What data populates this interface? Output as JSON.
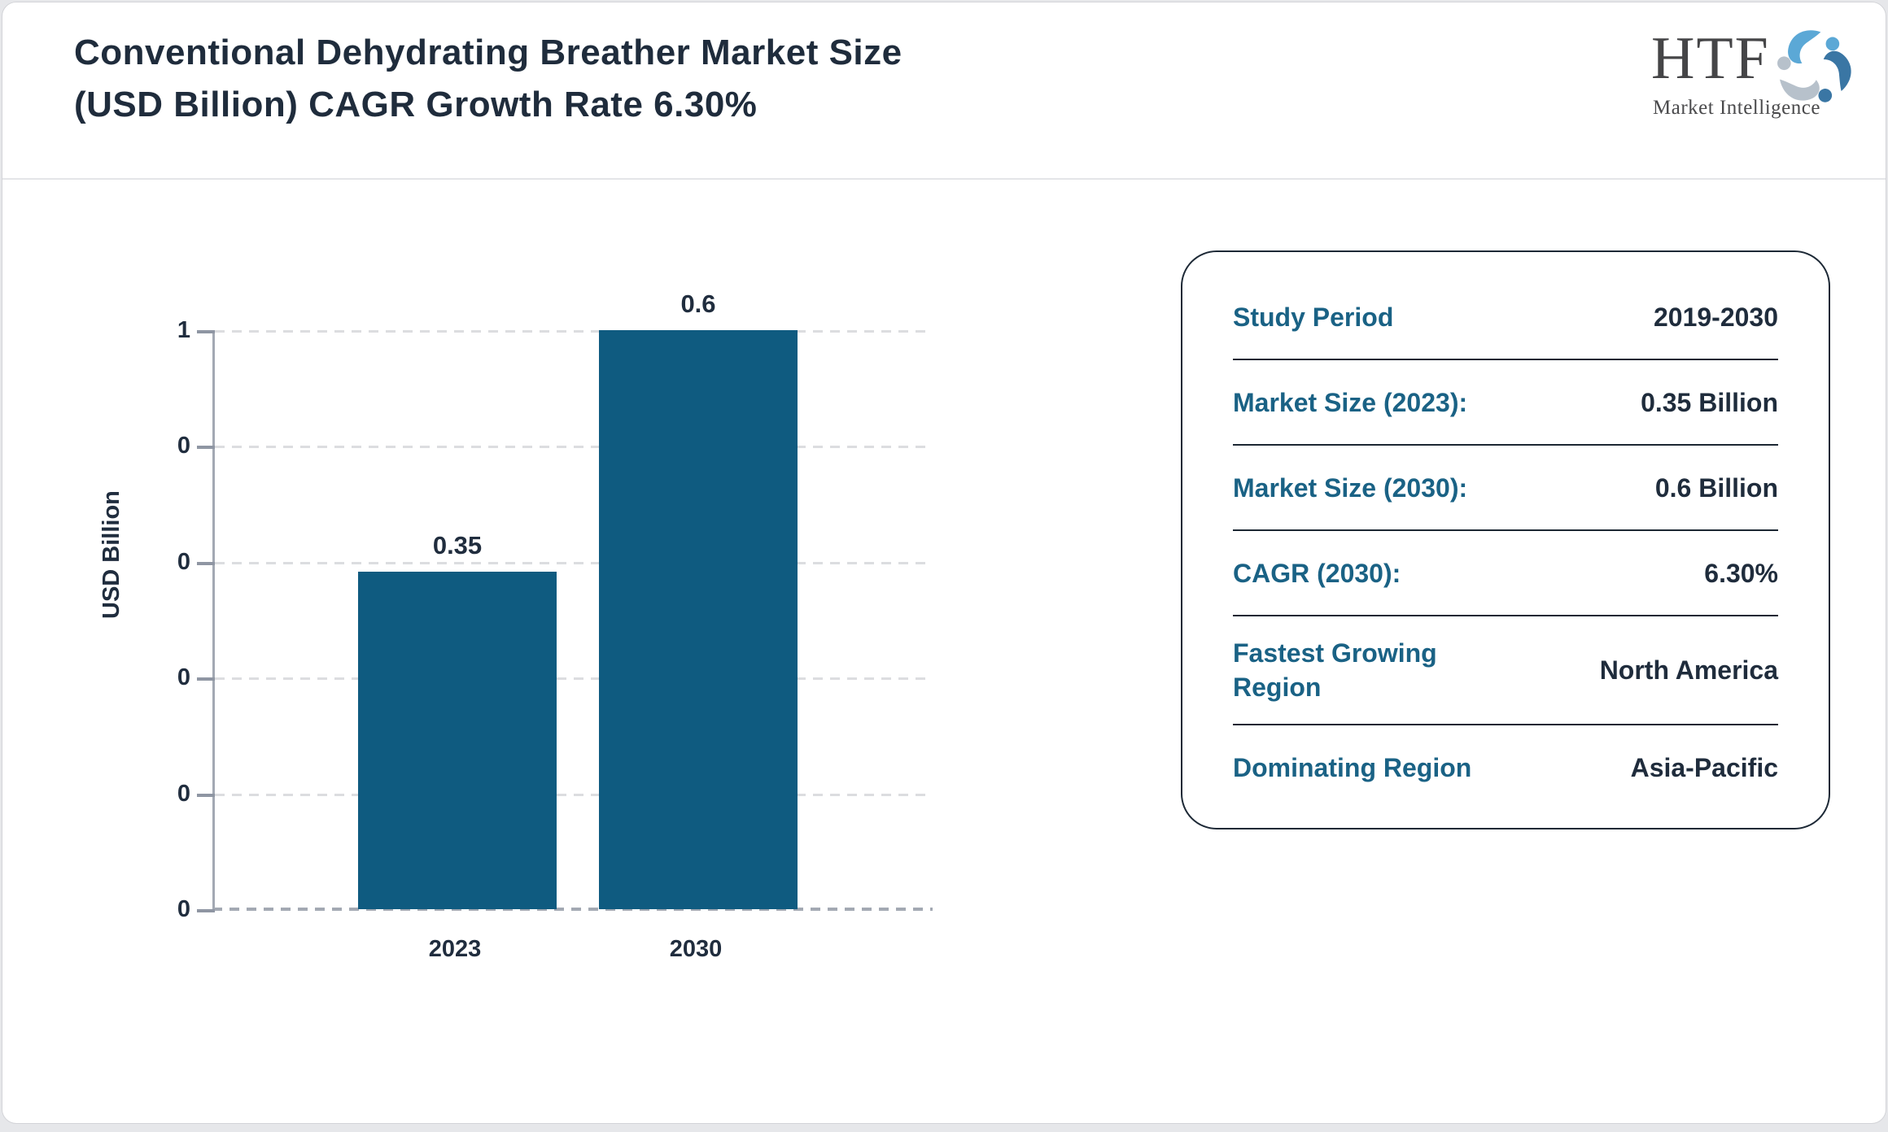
{
  "header": {
    "title_line1": "Conventional Dehydrating Breather Market Size",
    "title_line2": "(USD Billion) CAGR Growth Rate 6.30%"
  },
  "logo": {
    "brand": "HTF",
    "subtitle": "Market Intelligence",
    "icon": "swirl-of-three-figures",
    "colors": {
      "light_blue": "#5ba8d6",
      "steel_blue": "#3a76a4",
      "gray": "#b7c1cb"
    }
  },
  "chart_data": {
    "type": "bar",
    "title": "Conventional Dehydrating Breather Market Size (USD Billion) CAGR Growth Rate 6.30%",
    "categories": [
      "2023",
      "2030"
    ],
    "values": [
      0.35,
      0.6
    ],
    "value_labels": [
      "0.35",
      "0.6"
    ],
    "xlabel": "",
    "ylabel": "USD Billion",
    "ylim": [
      0,
      0.6
    ],
    "ytick_labels_top_to_bottom": [
      "1",
      "0",
      "0",
      "0",
      "0",
      "0"
    ],
    "grid": "horizontal-dashed",
    "legend": "none",
    "bar_color": "#0f5b80"
  },
  "card": {
    "rows": [
      {
        "label": "Study Period",
        "value": "2019-2030"
      },
      {
        "label": "Market Size (2023):",
        "value": "0.35 Billion"
      },
      {
        "label": "Market Size (2030):",
        "value": "0.6 Billion"
      },
      {
        "label": "CAGR (2030):",
        "value": "6.30%"
      },
      {
        "label": "Fastest Growing Region",
        "value": "North America"
      },
      {
        "label": "Dominating Region",
        "value": "Asia-Pacific"
      }
    ]
  },
  "colors": {
    "bar": "#0f5b80",
    "card_label_teal": "#1a6285",
    "text_dark": "#1f2c3c",
    "axis_gray": "#a3a9b3"
  }
}
